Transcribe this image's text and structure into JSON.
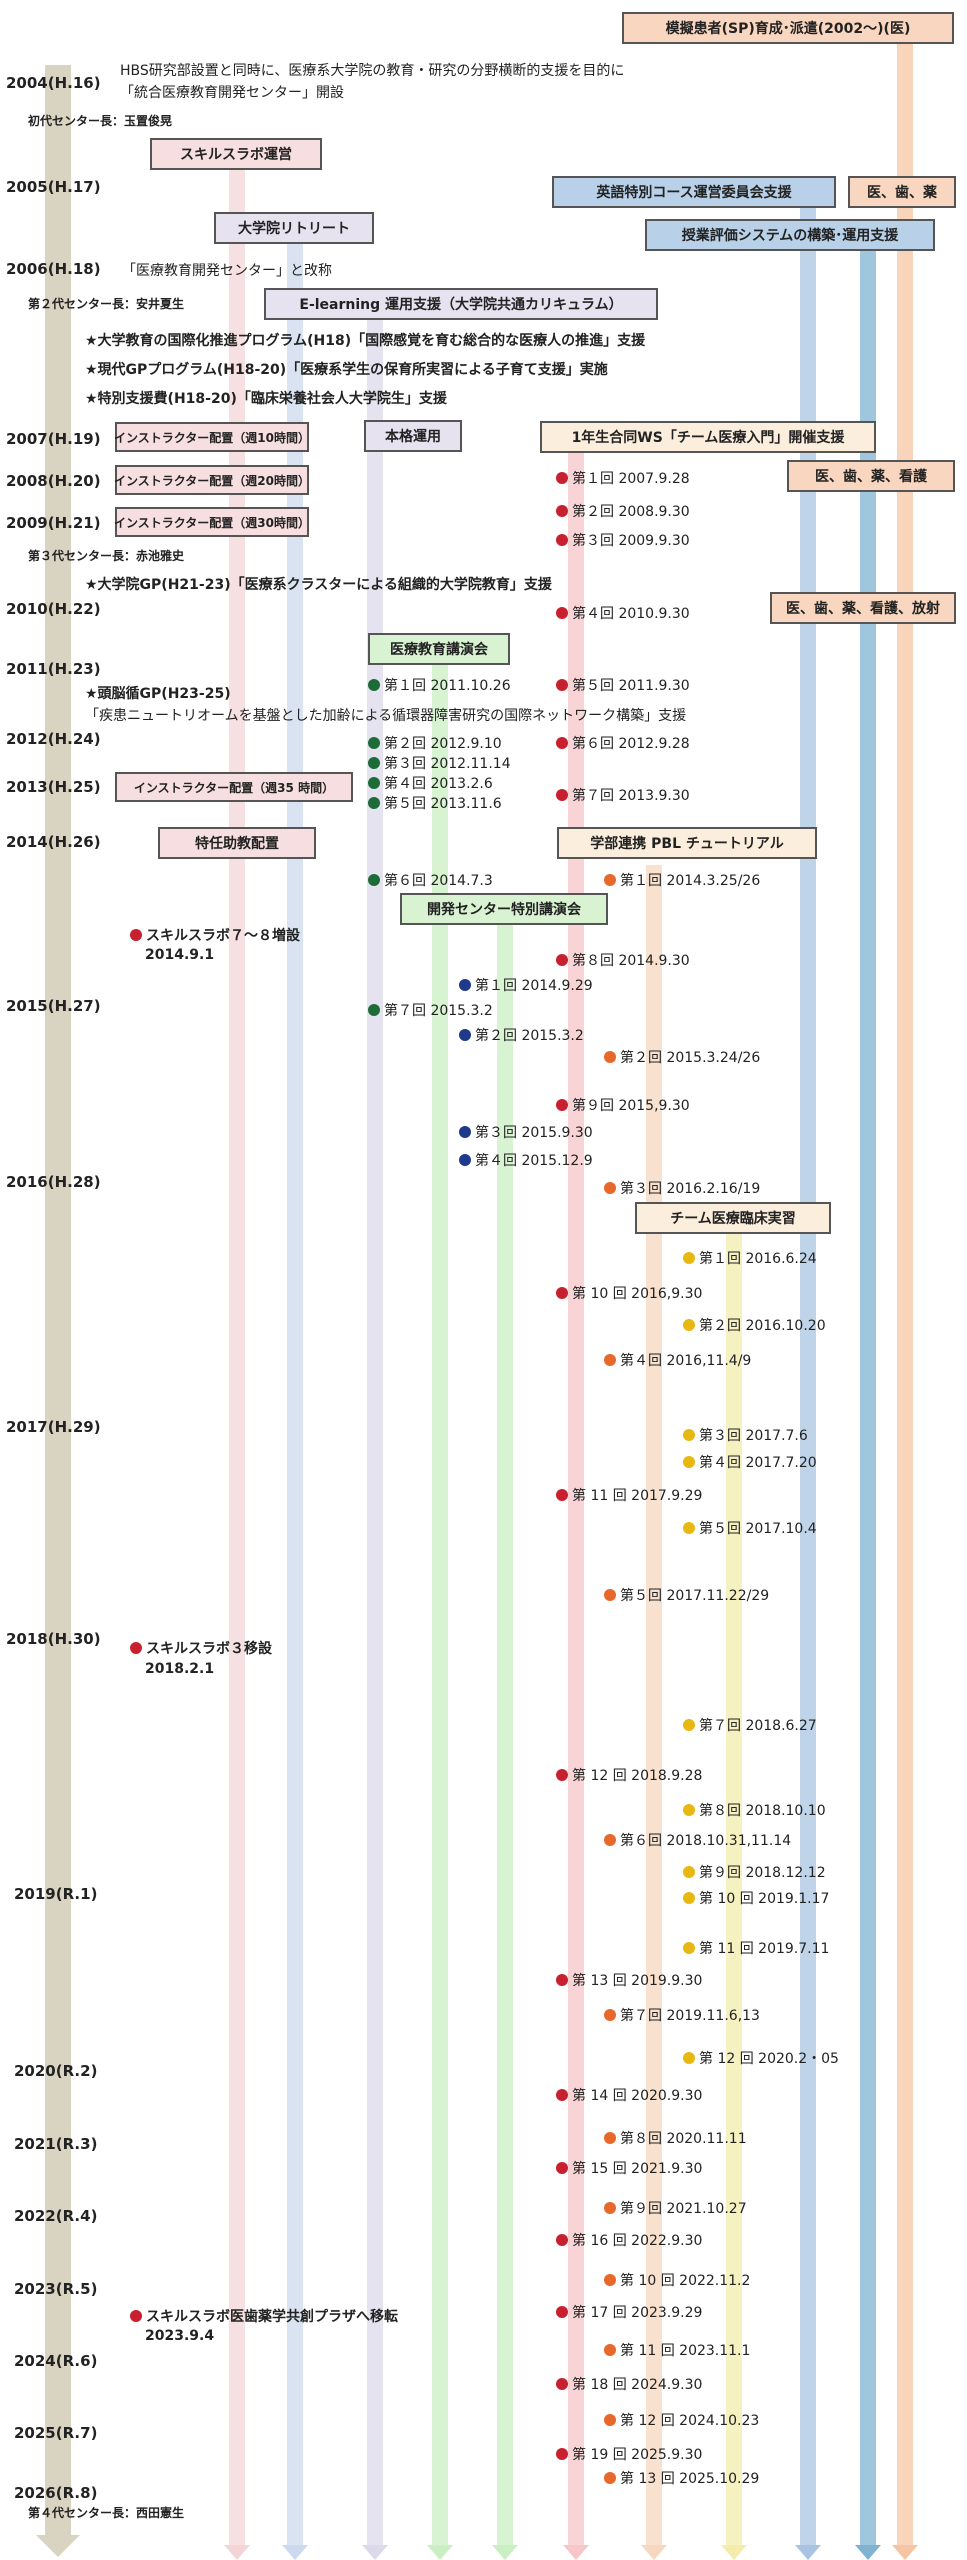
{
  "colors": {
    "axis": "#d9d3c1",
    "red": "#c8202f",
    "green": "#1e6b3a",
    "navy": "#1f3a8a",
    "orange": "#e8672a",
    "yellow": "#e8b812",
    "lane_pink": "#f3d5d7",
    "lane_blue": "#ccd9ee",
    "lane_lav": "#dcd9ea",
    "lane_green": "#c9efc2",
    "lane_red": "#f7c6c9",
    "lane_peach": "#f6d7bf",
    "lane_yellow": "#f3ecac",
    "lane_steel": "#a9c4e2",
    "lane_teal": "#7fb3d1",
    "lane_orange": "#f5c5a3"
  },
  "years": [
    "2004(H.16)",
    "2005(H.17)",
    "2006(H.18)",
    "2007(H.19)",
    "2008(H.20)",
    "2009(H.21)",
    "2010(H.22)",
    "2011(H.23)",
    "2012(H.24)",
    "2013(H.25)",
    "2014(H.26)",
    "2015(H.27)",
    "2016(H.28)",
    "2017(H.29)",
    "2018(H.30)",
    "2019(R.1)",
    "2020(R.2)",
    "2021(R.3)",
    "2022(R.4)",
    "2023(R.5)",
    "2024(R.6)",
    "2025(R.7)",
    "2026(R.8)"
  ],
  "texts": {
    "founding_line1": "HBS研究部設置と同時に、医療系大学院の教育・研究の分野横断的支援を目的に",
    "founding_line2": "「統合医療教育開発センター」開設",
    "director1": "初代センター長：玉置俊晃",
    "rename": "「医療教育開発センター」と改称",
    "director2": "第２代センター長：安井夏生",
    "star1": "★大学教育の国際化推進プログラム(H18)「国際感覚を育む総合的な医療人の推進」支援",
    "star2": "★現代GPプログラム(H18-20)「医療系学生の保育所実習による子育て支援」実施",
    "star3": "★特別支援費(H18-20)「臨床栄養社会人大学院生」支援",
    "director3": "第３代センター長：赤池雅史",
    "star4": "★大学院GP(H21-23)「医療系クラスターによる組織的大学院教育」支援",
    "star5": "★頭脳循GP(H23-25)",
    "star5_detail": "「疾患ニュートリオームを基盤とした加齢による循環器障害研究の国際ネットワーク構築」支援",
    "skills78": "スキルスラボ７～８増設",
    "skills78_date": "2014.9.1",
    "skills3": "スキルスラボ３移設",
    "skills3_date": "2018.2.1",
    "skills_move": "スキルスラボ医歯薬学共創プラザへ移転",
    "skills_move_date": "2023.9.4",
    "director4": "第４代センター長：西田憲生"
  },
  "boxes": {
    "sp": "模擬患者(SP)育成･派遣(2002～)(医)",
    "skills_lab": "スキルスラボ運営",
    "english": "英語特別コース運営委員会支援",
    "med_dent_pharm": "医、歯、薬",
    "retreat": "大学院リトリート",
    "eval": "授業評価システムの構築･運用支援",
    "elearning": "E-learning 運用支援（大学院共通カリキュラム）",
    "instr10": "インストラクター配置（週10時間）",
    "fulltime": "本格運用",
    "ws": "1年生合同WS「チーム医療入門」開催支援",
    "instr20": "インストラクター配置（週20時間）",
    "mdpn": "医、歯、薬、看護",
    "instr30": "インストラクター配置（週30時間）",
    "mdpnr": "医、歯、薬、看護、放射",
    "lecture": "医療教育講演会",
    "instr35": "インストラクター配置（週35 時間）",
    "assistant": "特任助教配置",
    "pbl": "学部連携 PBL チュートリアル",
    "center_lecture": "開発センター特別講演会",
    "clinical": "チーム医療臨床実習"
  },
  "events_red": [
    "第１回 2007.9.28",
    "第２回 2008.9.30",
    "第３回 2009.9.30",
    "第４回 2010.9.30",
    "第５回 2011.9.30",
    "第６回 2012.9.28",
    "第７回 2013.9.30",
    "第８回 2014.9.30",
    "第９回 2015,9.30",
    "第 10 回 2016,9.30",
    "第 11 回 2017.9.29",
    "第 12 回 2018.9.28",
    "第 13 回 2019.9.30",
    "第 14 回 2020.9.30",
    "第 15 回 2021.9.30",
    "第 16 回 2022.9.30",
    "第 17 回 2023.9.29",
    "第 18 回 2024.9.30",
    "第 19 回 2025.9.30"
  ],
  "events_green": [
    "第１回 2011.10.26",
    "第２回 2012.9.10",
    "第３回 2012.11.14",
    "第４回 2013.2.6",
    "第５回 2013.11.6",
    "第６回 2014.7.3",
    "第７回 2015.3.2"
  ],
  "events_navy": [
    "第１回 2014.9.29",
    "第２回 2015.3.2",
    "第３回 2015.9.30",
    "第４回 2015.12.9"
  ],
  "events_orange": [
    "第１回 2014.3.25/26",
    "第２回 2015.3.24/26",
    "第３回 2016.2.16/19",
    "第４回 2016,11.4/9",
    "第５回 2017.11.22/29",
    "第６回 2018.10.31,11.14",
    "第７回 2019.11.6,13",
    "第８回 2020.11.11",
    "第９回 2021.10.27",
    "第 10 回 2022.11.2",
    "第 11 回 2023.11.1",
    "第 12 回 2024.10.23",
    "第 13 回 2025.10.29"
  ],
  "events_yellow": [
    "第１回 2016.6.24",
    "第２回 2016.10.20",
    "第３回 2017.7.6",
    "第４回 2017.7.20",
    "第５回 2017.10.4",
    "第７回 2018.6.27",
    "第８回 2018.10.10",
    "第９回 2018.12.12",
    "第 10 回 2019.1.17",
    "第 11 回 2019.7.11",
    "第 12 回 2020.2・05"
  ]
}
